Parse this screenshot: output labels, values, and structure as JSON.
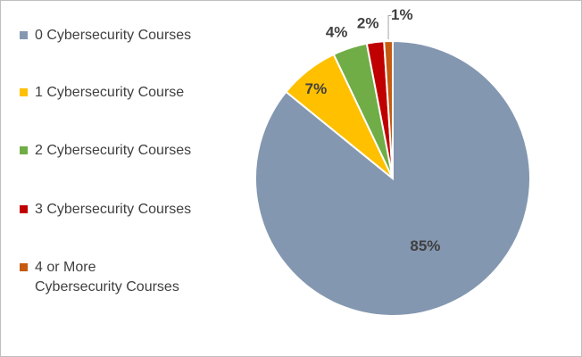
{
  "chart_data": {
    "type": "pie",
    "categories": [
      "0 Cybersecurity Courses",
      "1 Cybersecurity Course",
      "2 Cybersecurity Courses",
      "3 Cybersecurity Courses",
      "4 or More\nCybersecurity Courses"
    ],
    "values": [
      85,
      7,
      4,
      2,
      1
    ],
    "data_labels": [
      "85%",
      "7%",
      "4%",
      "2%",
      "1%"
    ],
    "colors": [
      "#8497b0",
      "#ffc000",
      "#70ad47",
      "#c00000",
      "#c55a11"
    ],
    "legend_position": "left",
    "start_angle": "12 o'clock, clockwise"
  }
}
